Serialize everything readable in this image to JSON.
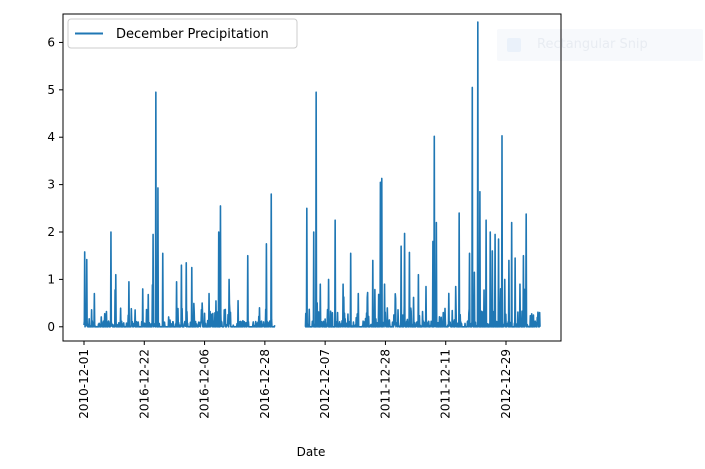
{
  "overlay": {
    "label": "Rectangular Snip"
  },
  "chart_data": {
    "type": "line",
    "title": "",
    "xlabel": "Date",
    "ylabel": "",
    "ylim": [
      -0.3,
      6.6
    ],
    "yticks": [
      0,
      1,
      2,
      3,
      4,
      5,
      6
    ],
    "xticks": [
      "2010-12-01",
      "2016-12-22",
      "2016-12-06",
      "2016-12-28",
      "2012-12-07",
      "2011-12-28",
      "2011-12-11",
      "2012-12-29"
    ],
    "grid": false,
    "legend": {
      "position": "upper-left"
    },
    "colors": {
      "series": "#1f77b4",
      "axes": "#000000"
    },
    "series": [
      {
        "name": "December Precipitation",
        "x_index_range": [
          0,
          1320
        ],
        "gap_index_range": [
          552,
          640
        ],
        "peaks": [
          [
            2,
            1.58
          ],
          [
            8,
            1.42
          ],
          [
            30,
            0.7
          ],
          [
            78,
            2.0
          ],
          [
            92,
            1.1
          ],
          [
            130,
            0.95
          ],
          [
            170,
            0.8
          ],
          [
            200,
            1.95
          ],
          [
            208,
            4.95
          ],
          [
            214,
            2.93
          ],
          [
            228,
            1.55
          ],
          [
            268,
            0.95
          ],
          [
            282,
            1.3
          ],
          [
            296,
            1.35
          ],
          [
            312,
            1.25
          ],
          [
            342,
            0.5
          ],
          [
            362,
            0.7
          ],
          [
            390,
            2.0
          ],
          [
            395,
            2.55
          ],
          [
            420,
            1.0
          ],
          [
            446,
            0.55
          ],
          [
            474,
            1.5
          ],
          [
            508,
            0.4
          ],
          [
            528,
            1.75
          ],
          [
            542,
            2.8
          ],
          [
            560,
            0.3
          ],
          [
            645,
            2.5
          ],
          [
            665,
            2.0
          ],
          [
            672,
            4.95
          ],
          [
            684,
            0.9
          ],
          [
            708,
            1.0
          ],
          [
            727,
            2.25
          ],
          [
            750,
            0.9
          ],
          [
            772,
            1.55
          ],
          [
            794,
            0.7
          ],
          [
            820,
            0.62
          ],
          [
            836,
            1.4
          ],
          [
            858,
            3.05
          ],
          [
            862,
            3.13
          ],
          [
            870,
            0.9
          ],
          [
            902,
            0.6
          ],
          [
            918,
            1.7
          ],
          [
            928,
            1.97
          ],
          [
            942,
            1.57
          ],
          [
            954,
            0.62
          ],
          [
            968,
            1.1
          ],
          [
            990,
            0.85
          ],
          [
            1010,
            1.8
          ],
          [
            1014,
            4.02
          ],
          [
            1020,
            2.2
          ],
          [
            1040,
            0.3
          ],
          [
            1076,
            0.85
          ],
          [
            1086,
            2.4
          ],
          [
            1116,
            1.55
          ],
          [
            1124,
            5.05
          ],
          [
            1130,
            1.15
          ],
          [
            1140,
            6.43
          ],
          [
            1146,
            2.85
          ],
          [
            1164,
            2.25
          ],
          [
            1176,
            2.0
          ],
          [
            1182,
            1.6
          ],
          [
            1190,
            1.95
          ],
          [
            1200,
            1.85
          ],
          [
            1210,
            4.03
          ],
          [
            1218,
            1.0
          ],
          [
            1230,
            1.4
          ],
          [
            1238,
            2.2
          ],
          [
            1248,
            1.45
          ],
          [
            1262,
            0.9
          ],
          [
            1272,
            1.5
          ],
          [
            1280,
            2.38
          ]
        ]
      }
    ]
  }
}
